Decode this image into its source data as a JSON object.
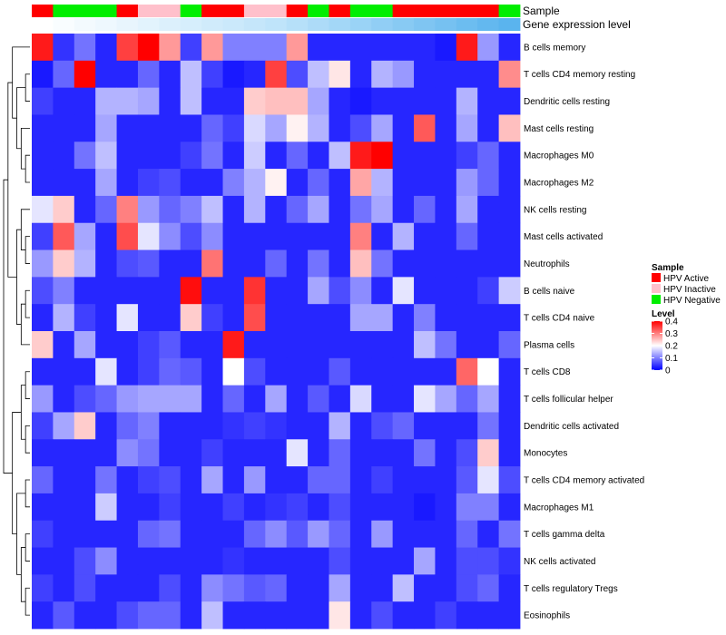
{
  "chart_data": {
    "type": "heatmap",
    "annotation_titles": [
      "Sample",
      "Gene expression level"
    ],
    "sample_groups": [
      "Active",
      "Negative",
      "Negative",
      "Negative",
      "Active",
      "Inactive",
      "Inactive",
      "Negative",
      "Active",
      "Active",
      "Inactive",
      "Inactive",
      "Active",
      "Negative",
      "Active",
      "Negative",
      "Negative",
      "Active",
      "Active",
      "Active",
      "Active",
      "Active",
      "Negative"
    ],
    "expression_gradient": [
      "#ffffff",
      "#bfe4fa",
      "#5ab4ee"
    ],
    "rows": [
      "B cells memory",
      "T cells CD4 memory resting",
      "Dendritic cells resting",
      "Mast cells resting",
      "Macrophages M0",
      "Macrophages M2",
      "NK cells resting",
      "Mast cells activated",
      "Neutrophils",
      "B cells naive",
      "T cells CD4 naive",
      "Plasma cells",
      "T cells CD8",
      "T cells follicular helper",
      "Dendritic cells activated",
      "Monocytes",
      "T cells CD4 memory activated",
      "Macrophages M1",
      "T cells gamma delta",
      "NK cells activated",
      "T cells regulatory  Tregs",
      "Eosinophils"
    ],
    "values": [
      [
        0.38,
        0.04,
        0.09,
        0.03,
        0.35,
        0.4,
        0.28,
        0.05,
        0.28,
        0.1,
        0.1,
        0.1,
        0.28,
        0.03,
        0.03,
        0.03,
        0.03,
        0.03,
        0.03,
        0.02,
        0.38,
        0.12,
        0.03
      ],
      [
        0.02,
        0.08,
        0.4,
        0.03,
        0.03,
        0.08,
        0.03,
        0.15,
        0.05,
        0.02,
        0.03,
        0.35,
        0.06,
        0.15,
        0.22,
        0.03,
        0.14,
        0.12,
        0.03,
        0.03,
        0.03,
        0.03,
        0.29
      ],
      [
        0.05,
        0.03,
        0.03,
        0.14,
        0.14,
        0.13,
        0.03,
        0.15,
        0.03,
        0.03,
        0.24,
        0.25,
        0.25,
        0.13,
        0.03,
        0.02,
        0.03,
        0.03,
        0.03,
        0.03,
        0.14,
        0.03,
        0.03
      ],
      [
        0.03,
        0.03,
        0.03,
        0.13,
        0.03,
        0.03,
        0.03,
        0.03,
        0.08,
        0.05,
        0.17,
        0.13,
        0.21,
        0.14,
        0.03,
        0.06,
        0.13,
        0.03,
        0.33,
        0.03,
        0.13,
        0.03,
        0.25
      ],
      [
        0.03,
        0.03,
        0.09,
        0.15,
        0.03,
        0.03,
        0.03,
        0.05,
        0.09,
        0.03,
        0.16,
        0.03,
        0.08,
        0.03,
        0.15,
        0.38,
        0.4,
        0.03,
        0.03,
        0.03,
        0.05,
        0.08,
        0.03
      ],
      [
        0.03,
        0.03,
        0.03,
        0.13,
        0.03,
        0.05,
        0.06,
        0.03,
        0.03,
        0.1,
        0.14,
        0.21,
        0.03,
        0.08,
        0.03,
        0.27,
        0.14,
        0.03,
        0.03,
        0.03,
        0.12,
        0.08,
        0.03
      ],
      [
        0.18,
        0.24,
        0.03,
        0.08,
        0.3,
        0.12,
        0.08,
        0.1,
        0.15,
        0.03,
        0.14,
        0.03,
        0.08,
        0.13,
        0.03,
        0.09,
        0.13,
        0.03,
        0.08,
        0.03,
        0.13,
        0.03,
        0.03
      ],
      [
        0.05,
        0.33,
        0.13,
        0.03,
        0.34,
        0.18,
        0.11,
        0.06,
        0.11,
        0.03,
        0.03,
        0.03,
        0.03,
        0.03,
        0.03,
        0.3,
        0.03,
        0.14,
        0.03,
        0.03,
        0.08,
        0.03,
        0.03
      ],
      [
        0.12,
        0.24,
        0.14,
        0.03,
        0.06,
        0.07,
        0.03,
        0.03,
        0.31,
        0.03,
        0.03,
        0.08,
        0.03,
        0.09,
        0.03,
        0.25,
        0.09,
        0.03,
        0.03,
        0.03,
        0.03,
        0.03,
        0.03
      ],
      [
        0.06,
        0.1,
        0.03,
        0.03,
        0.03,
        0.03,
        0.03,
        0.39,
        0.03,
        0.03,
        0.36,
        0.03,
        0.03,
        0.13,
        0.06,
        0.11,
        0.03,
        0.18,
        0.03,
        0.03,
        0.03,
        0.05,
        0.16
      ],
      [
        0.03,
        0.14,
        0.05,
        0.03,
        0.18,
        0.03,
        0.03,
        0.24,
        0.05,
        0.03,
        0.34,
        0.03,
        0.03,
        0.03,
        0.03,
        0.13,
        0.13,
        0.03,
        0.1,
        0.03,
        0.03,
        0.03,
        0.03
      ],
      [
        0.24,
        0.03,
        0.13,
        0.03,
        0.03,
        0.05,
        0.07,
        0.03,
        0.03,
        0.38,
        0.03,
        0.03,
        0.03,
        0.03,
        0.03,
        0.03,
        0.03,
        0.03,
        0.15,
        0.09,
        0.03,
        0.03,
        0.08
      ],
      [
        0.03,
        0.03,
        0.03,
        0.18,
        0.03,
        0.05,
        0.08,
        0.07,
        0.03,
        0.2,
        0.06,
        0.03,
        0.03,
        0.03,
        0.07,
        0.03,
        0.03,
        0.03,
        0.03,
        0.03,
        0.32,
        0.2,
        0.03
      ],
      [
        0.12,
        0.03,
        0.06,
        0.08,
        0.12,
        0.13,
        0.13,
        0.13,
        0.03,
        0.08,
        0.03,
        0.13,
        0.03,
        0.07,
        0.03,
        0.17,
        0.03,
        0.03,
        0.18,
        0.13,
        0.08,
        0.13,
        0.03
      ],
      [
        0.05,
        0.13,
        0.24,
        0.03,
        0.08,
        0.1,
        0.03,
        0.03,
        0.03,
        0.04,
        0.05,
        0.04,
        0.03,
        0.03,
        0.14,
        0.03,
        0.06,
        0.08,
        0.03,
        0.03,
        0.03,
        0.09,
        0.03
      ],
      [
        0.03,
        0.03,
        0.03,
        0.03,
        0.11,
        0.09,
        0.03,
        0.03,
        0.05,
        0.03,
        0.03,
        0.03,
        0.18,
        0.03,
        0.08,
        0.03,
        0.03,
        0.03,
        0.09,
        0.03,
        0.06,
        0.24,
        0.03
      ],
      [
        0.08,
        0.03,
        0.03,
        0.09,
        0.03,
        0.05,
        0.06,
        0.03,
        0.13,
        0.03,
        0.12,
        0.03,
        0.03,
        0.08,
        0.08,
        0.03,
        0.05,
        0.03,
        0.03,
        0.03,
        0.07,
        0.18,
        0.06
      ],
      [
        0.03,
        0.03,
        0.03,
        0.16,
        0.03,
        0.03,
        0.05,
        0.03,
        0.03,
        0.05,
        0.03,
        0.04,
        0.05,
        0.03,
        0.06,
        0.03,
        0.03,
        0.03,
        0.02,
        0.03,
        0.1,
        0.1,
        0.03
      ],
      [
        0.05,
        0.03,
        0.03,
        0.03,
        0.03,
        0.08,
        0.09,
        0.03,
        0.03,
        0.03,
        0.08,
        0.11,
        0.07,
        0.12,
        0.08,
        0.03,
        0.12,
        0.03,
        0.03,
        0.03,
        0.08,
        0.03,
        0.09
      ],
      [
        0.03,
        0.03,
        0.06,
        0.11,
        0.03,
        0.03,
        0.03,
        0.03,
        0.03,
        0.04,
        0.03,
        0.03,
        0.03,
        0.03,
        0.06,
        0.03,
        0.03,
        0.03,
        0.13,
        0.03,
        0.06,
        0.06,
        0.04
      ],
      [
        0.05,
        0.03,
        0.06,
        0.03,
        0.03,
        0.03,
        0.06,
        0.03,
        0.11,
        0.09,
        0.07,
        0.08,
        0.03,
        0.03,
        0.13,
        0.03,
        0.03,
        0.15,
        0.03,
        0.03,
        0.06,
        0.08,
        0.03
      ],
      [
        0.03,
        0.07,
        0.03,
        0.03,
        0.06,
        0.08,
        0.08,
        0.03,
        0.15,
        0.03,
        0.03,
        0.03,
        0.03,
        0.03,
        0.22,
        0.03,
        0.06,
        0.03,
        0.03,
        0.05,
        0.03,
        0.03,
        0.03
      ]
    ],
    "legend": {
      "sample_title": "Sample",
      "sample_items": [
        {
          "key": "Active",
          "label": "HPV Active",
          "color": "#ff0000"
        },
        {
          "key": "Inactive",
          "label": "HPV Inactive",
          "color": "#ffc0cb"
        },
        {
          "key": "Negative",
          "label": "HPV Negative",
          "color": "#00ee00"
        }
      ],
      "level_title": "Level",
      "level_ticks": [
        "0.4",
        "0.3",
        "0.2",
        "0.1",
        "0"
      ],
      "level_tick_values": [
        0.4,
        0.3,
        0.2,
        0.1,
        0
      ],
      "color_stops": [
        "#0000ff",
        "#ffffff",
        "#ff0000"
      ],
      "range": [
        0,
        0.4
      ]
    }
  }
}
